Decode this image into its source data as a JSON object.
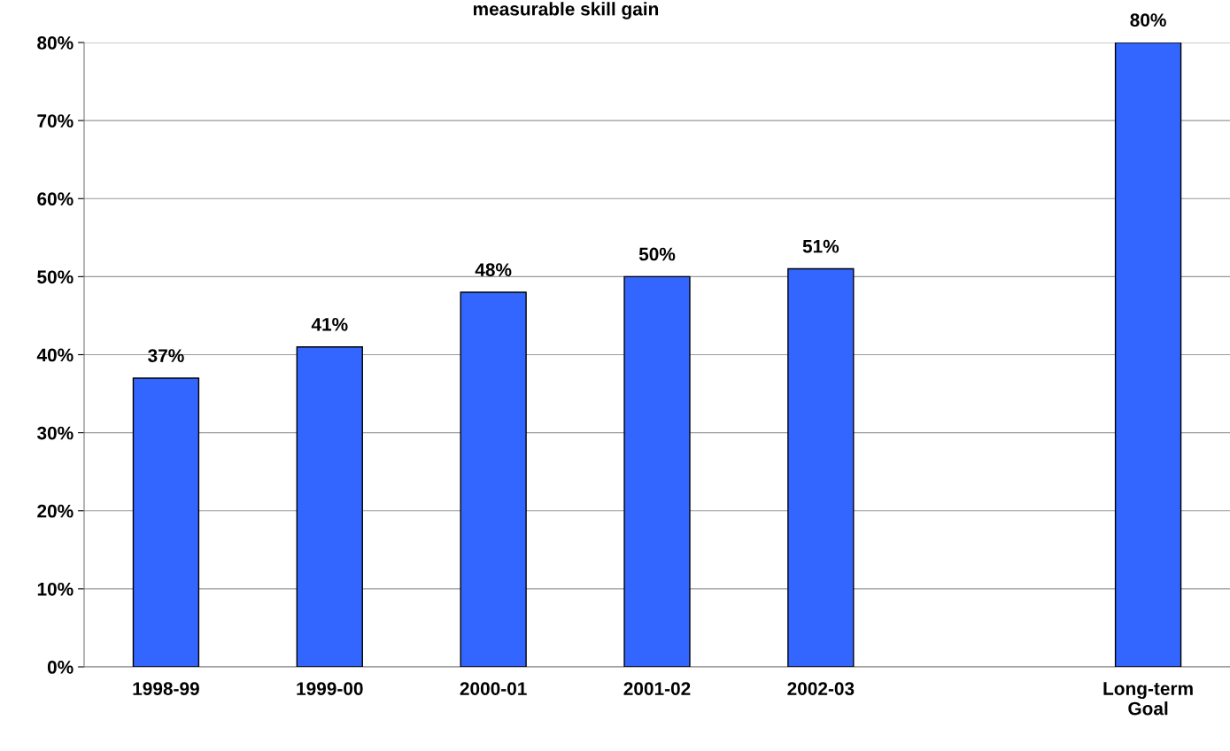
{
  "chart_data": {
    "type": "bar",
    "title": "measurable skill gain",
    "categories": [
      "1998-99",
      "1999-00",
      "2000-01",
      "2001-02",
      "2002-03",
      null,
      "Long-term\nGoal"
    ],
    "values": [
      37,
      41,
      48,
      50,
      51,
      null,
      80
    ],
    "value_labels": [
      "37%",
      "41%",
      "48%",
      "50%",
      "51%",
      null,
      "80%"
    ],
    "color": "#3366ff",
    "ylim": [
      0,
      80
    ],
    "yticks": [
      {
        "value": 0,
        "label": "0%"
      },
      {
        "value": 10,
        "label": "10%"
      },
      {
        "value": 20,
        "label": "20%"
      },
      {
        "value": 30,
        "label": "30%"
      },
      {
        "value": 40,
        "label": "40%"
      },
      {
        "value": 50,
        "label": "50%"
      },
      {
        "value": 60,
        "label": "60%"
      },
      {
        "value": 70,
        "label": "70%"
      },
      {
        "value": 80,
        "label": "80%"
      }
    ],
    "grid": "y",
    "legend": false
  }
}
